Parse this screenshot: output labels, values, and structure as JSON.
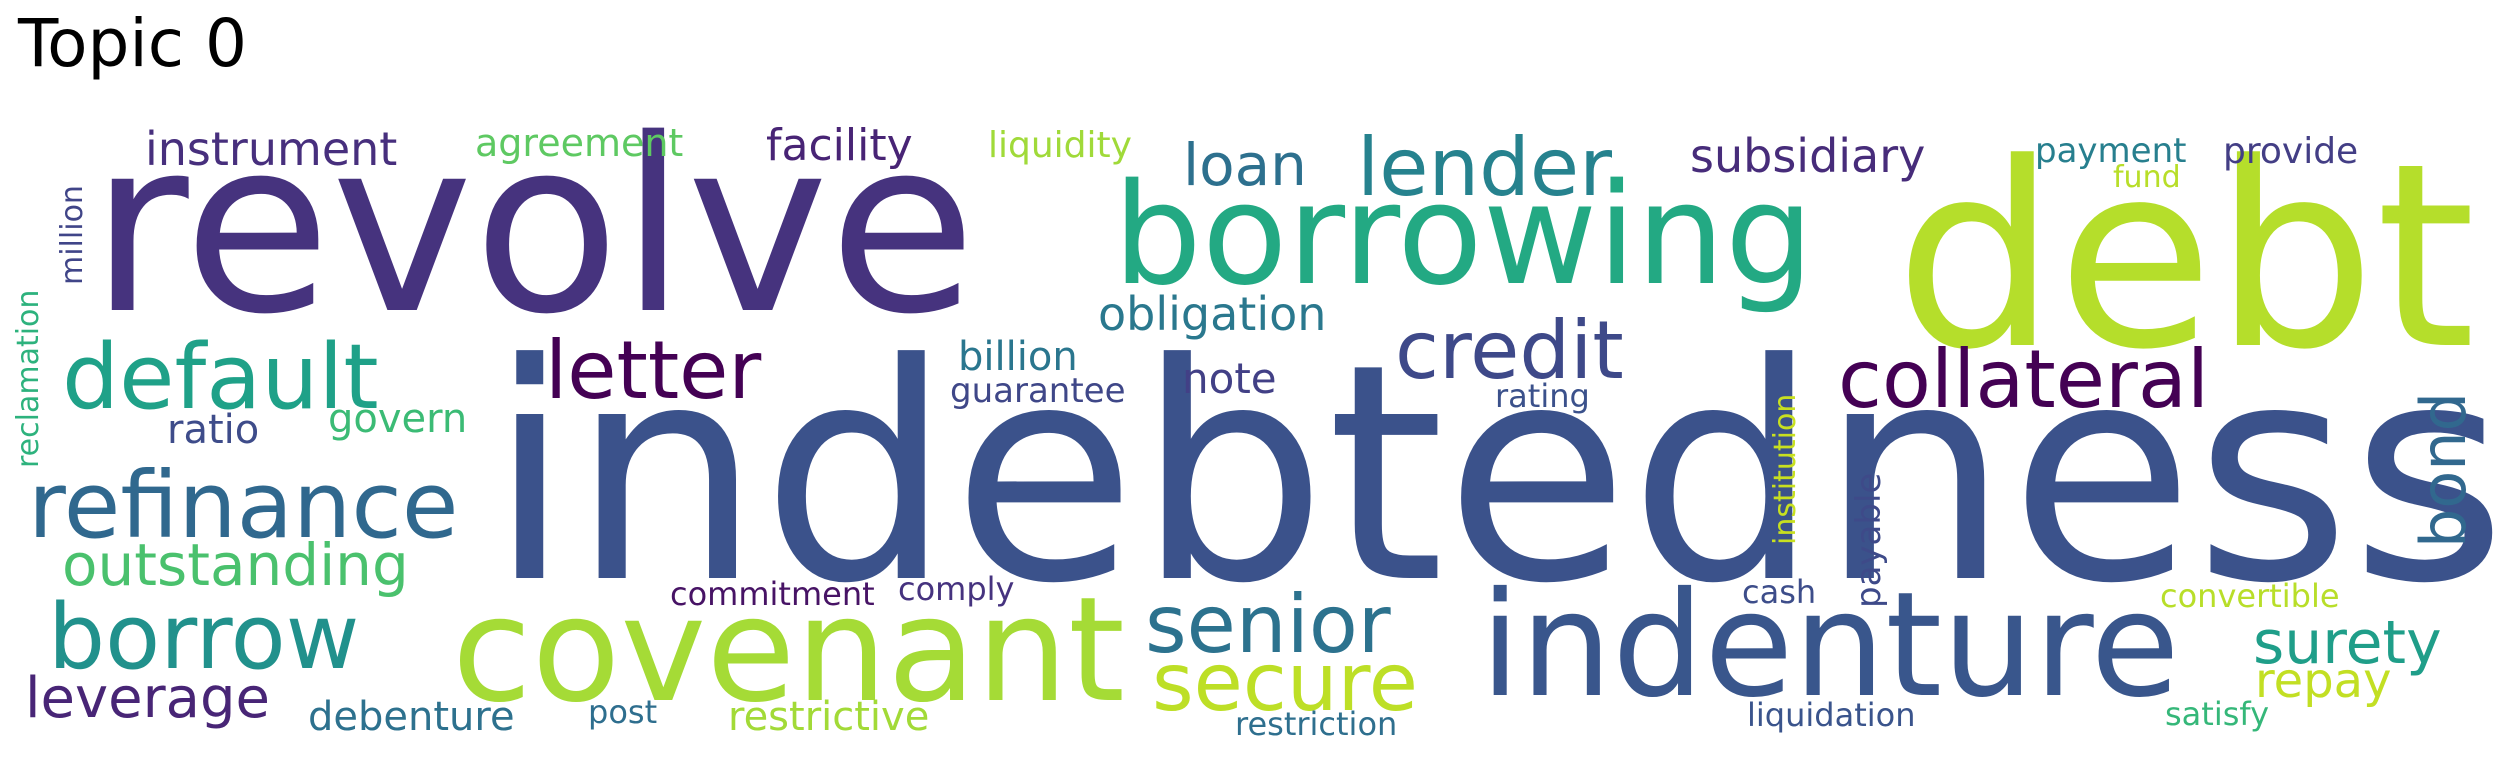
{
  "figure": {
    "title": "Topic 0"
  },
  "words": [
    {
      "text": "revolve",
      "color": "#46337e",
      "weight": 1
    },
    {
      "text": "indebtedness",
      "color": "#3b528b",
      "weight": 1
    },
    {
      "text": "debt",
      "color": "#b5de2b",
      "weight": 1
    },
    {
      "text": "borrowing",
      "color": "#23a983",
      "weight": 1
    },
    {
      "text": "covenant",
      "color": "#a5db36",
      "weight": 1
    },
    {
      "text": "indenture",
      "color": "#39568c",
      "weight": 1
    },
    {
      "text": "default",
      "color": "#1fa188",
      "weight": 1
    },
    {
      "text": "refinance",
      "color": "#30688e",
      "weight": 1
    },
    {
      "text": "borrow",
      "color": "#21918c",
      "weight": 1
    },
    {
      "text": "lender",
      "color": "#26828e",
      "weight": 1
    },
    {
      "text": "letter",
      "color": "#440154",
      "weight": 1
    },
    {
      "text": "credit",
      "color": "#3e4989",
      "weight": 1
    },
    {
      "text": "collateral",
      "color": "#440154",
      "weight": 1
    },
    {
      "text": "senior",
      "color": "#2c728e",
      "weight": 1
    },
    {
      "text": "secure",
      "color": "#bddf26",
      "weight": 1
    },
    {
      "text": "outstanding",
      "color": "#4ac16d",
      "weight": 1
    },
    {
      "text": "surety",
      "color": "#1f9e89",
      "weight": 1
    },
    {
      "text": "leverage",
      "color": "#482576",
      "weight": 1
    },
    {
      "text": "bond",
      "color": "#31688e",
      "weight": 1
    },
    {
      "text": "instrument",
      "color": "#472f7d",
      "weight": 1
    },
    {
      "text": "loan",
      "color": "#2d708e",
      "weight": 1
    },
    {
      "text": "subsidiary",
      "color": "#472c7a",
      "weight": 1
    },
    {
      "text": "obligation",
      "color": "#2a788e",
      "weight": 1
    },
    {
      "text": "facility",
      "color": "#482475",
      "weight": 1
    },
    {
      "text": "agreement",
      "color": "#5ec962",
      "weight": 1
    },
    {
      "text": "liquidity",
      "color": "#a0da39",
      "weight": 1
    },
    {
      "text": "payment",
      "color": "#277f8e",
      "weight": 1
    },
    {
      "text": "provide",
      "color": "#433e85",
      "weight": 1
    },
    {
      "text": "fund",
      "color": "#b8de29",
      "weight": 1
    },
    {
      "text": "note",
      "color": "#424086",
      "weight": 1
    },
    {
      "text": "billion",
      "color": "#2a768e",
      "weight": 1
    },
    {
      "text": "guarantee",
      "color": "#3f4788",
      "weight": 1
    },
    {
      "text": "ratio",
      "color": "#3e4c8a",
      "weight": 1
    },
    {
      "text": "govern",
      "color": "#3bbb75",
      "weight": 1
    },
    {
      "text": "rating",
      "color": "#3b518b",
      "weight": 1
    },
    {
      "text": "debenture",
      "color": "#2d718e",
      "weight": 1
    },
    {
      "text": "restrictive",
      "color": "#a2da37",
      "weight": 1
    },
    {
      "text": "repay",
      "color": "#c2df23",
      "weight": 1
    },
    {
      "text": "commitment",
      "color": "#471365",
      "weight": 1
    },
    {
      "text": "comply",
      "color": "#46337f",
      "weight": 1
    },
    {
      "text": "cash",
      "color": "#3d4d8a",
      "weight": 1
    },
    {
      "text": "convertible",
      "color": "#b8de29",
      "weight": 1
    },
    {
      "text": "post",
      "color": "#2e6e8e",
      "weight": 1
    },
    {
      "text": "restriction",
      "color": "#2e6f8e",
      "weight": 1
    },
    {
      "text": "liquidation",
      "color": "#3a548c",
      "weight": 1
    },
    {
      "text": "satisfy",
      "color": "#35b779",
      "weight": 1
    },
    {
      "text": "million",
      "color": "#404588",
      "weight": 1
    },
    {
      "text": "reclamation",
      "color": "#2db27d",
      "weight": 1
    },
    {
      "text": "institution",
      "color": "#c8e020",
      "weight": 1
    },
    {
      "text": "payable",
      "color": "#3e4a89",
      "weight": 1
    }
  ]
}
